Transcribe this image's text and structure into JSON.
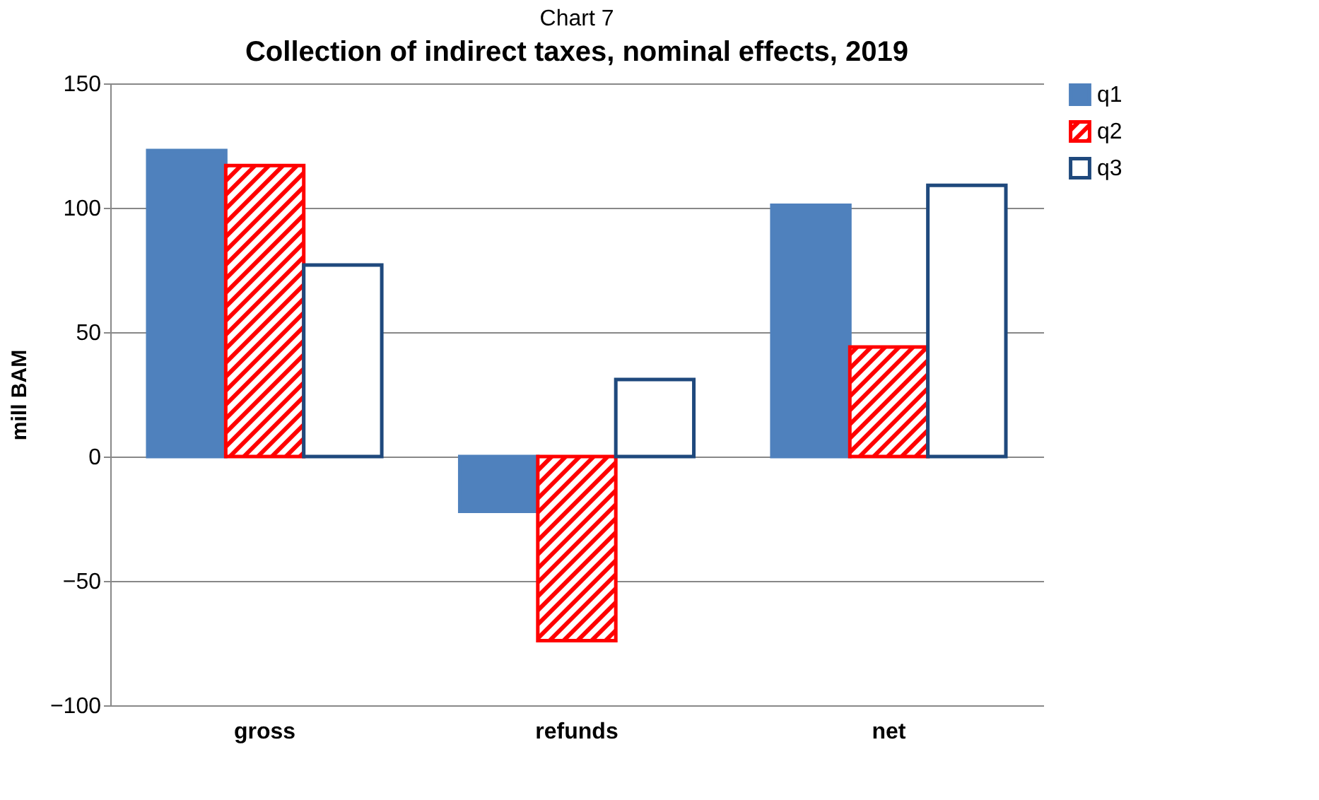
{
  "chart_data": {
    "type": "bar",
    "title": "Chart 7",
    "subtitle": "Collection of indirect taxes, nominal effects, 2019",
    "ylabel": "mill BAM",
    "categories": [
      "gross",
      "refunds",
      "net"
    ],
    "series": [
      {
        "name": "q1",
        "color": "#4f81bd",
        "values": [
          123,
          -22,
          101
        ]
      },
      {
        "name": "q2",
        "color": "#ff0000",
        "values": [
          117,
          -74,
          44
        ]
      },
      {
        "name": "q3",
        "color": "#1f497d",
        "values": [
          77,
          31,
          109
        ]
      }
    ],
    "ylim": [
      -100,
      150
    ],
    "yticks": [
      -100,
      -50,
      0,
      50,
      100,
      150
    ],
    "grid": "y",
    "legend": "right"
  }
}
